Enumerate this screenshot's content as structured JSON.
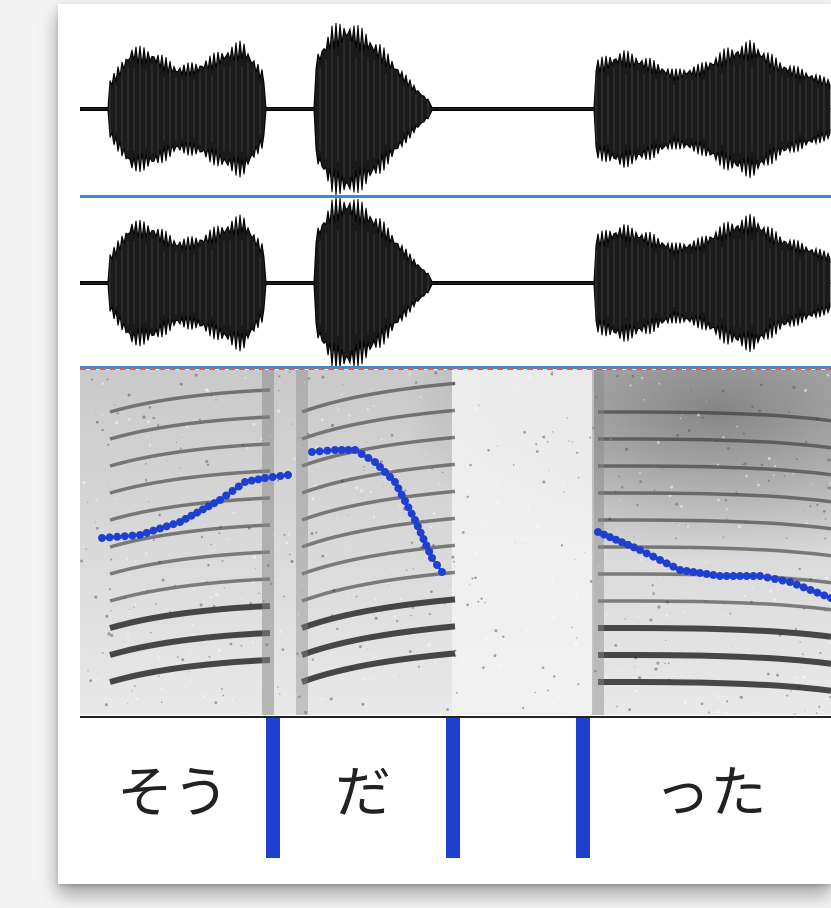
{
  "segments": [
    {
      "label": "そう",
      "start": 0.0,
      "end": 0.25
    },
    {
      "label": "だ",
      "start": 0.25,
      "end": 0.495
    },
    {
      "label": "",
      "start": 0.495,
      "end": 0.667
    },
    {
      "label": "った",
      "start": 0.667,
      "end": 1.0
    }
  ],
  "colors": {
    "separator": "#3a8ec8",
    "pitch": "#1f3fd0",
    "boundary": "#1f3fd0",
    "waveform": "#1a1a1a"
  }
}
